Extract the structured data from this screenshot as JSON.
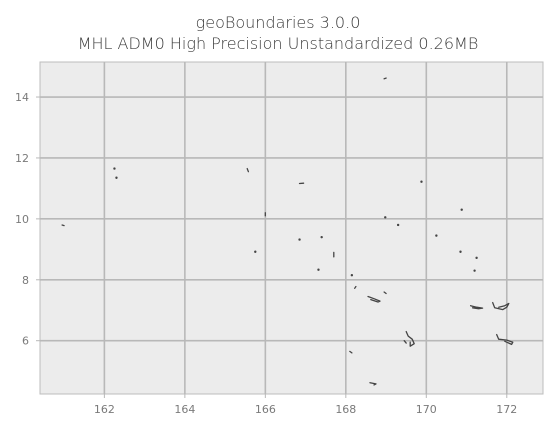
{
  "title": {
    "line1": "geoBoundaries 3.0.0",
    "line2": "MHL ADM0 High Precision Unstandardized 0.26MB"
  },
  "colors": {
    "background": "#ececec",
    "grid": "#b8b8b8",
    "land": "#444444"
  },
  "axes": {
    "x_range": [
      160.4,
      172.9
    ],
    "y_range": [
      4.25,
      15.15
    ],
    "x_ticks": [
      162,
      164,
      166,
      168,
      170,
      172
    ],
    "y_ticks": [
      6,
      8,
      10,
      12,
      14
    ],
    "grid": true
  },
  "islands": [
    {
      "name": "",
      "points": [
        [
          169.0,
          14.62
        ],
        [
          168.95,
          14.6
        ]
      ]
    },
    {
      "name": "",
      "points": [
        [
          162.25,
          11.65
        ]
      ]
    },
    {
      "name": "",
      "points": [
        [
          162.3,
          11.35
        ]
      ]
    },
    {
      "name": "",
      "points": [
        [
          165.55,
          11.65
        ],
        [
          165.58,
          11.55
        ]
      ]
    },
    {
      "name": "",
      "points": [
        [
          166.85,
          11.16
        ],
        [
          166.95,
          11.17
        ]
      ]
    },
    {
      "name": "",
      "points": [
        [
          169.88,
          11.22
        ]
      ]
    },
    {
      "name": "",
      "points": [
        [
          170.88,
          10.3
        ]
      ]
    },
    {
      "name": "",
      "points": [
        [
          160.95,
          9.8
        ],
        [
          161.0,
          9.78
        ]
      ]
    },
    {
      "name": "",
      "points": [
        [
          166.0,
          10.2
        ],
        [
          166.0,
          10.1
        ]
      ]
    },
    {
      "name": "",
      "points": [
        [
          168.98,
          10.05
        ]
      ]
    },
    {
      "name": "",
      "points": [
        [
          169.3,
          9.8
        ]
      ]
    },
    {
      "name": "",
      "points": [
        [
          170.25,
          9.45
        ]
      ]
    },
    {
      "name": "",
      "points": [
        [
          166.85,
          9.32
        ]
      ]
    },
    {
      "name": "",
      "points": [
        [
          167.4,
          9.4
        ]
      ]
    },
    {
      "name": "",
      "points": [
        [
          165.75,
          8.92
        ]
      ]
    },
    {
      "name": "",
      "points": [
        [
          167.7,
          8.9
        ],
        [
          167.7,
          8.75
        ]
      ]
    },
    {
      "name": "",
      "points": [
        [
          170.85,
          8.92
        ]
      ]
    },
    {
      "name": "",
      "points": [
        [
          171.25,
          8.72
        ]
      ]
    },
    {
      "name": "",
      "points": [
        [
          167.32,
          8.33
        ]
      ]
    },
    {
      "name": "",
      "points": [
        [
          171.2,
          8.3
        ]
      ]
    },
    {
      "name": "",
      "points": [
        [
          168.15,
          8.15
        ]
      ]
    },
    {
      "name": "",
      "points": [
        [
          168.25,
          7.78
        ],
        [
          168.22,
          7.72
        ]
      ]
    },
    {
      "name": "",
      "points": [
        [
          168.55,
          7.45
        ],
        [
          168.7,
          7.38
        ],
        [
          168.85,
          7.3
        ],
        [
          168.8,
          7.27
        ],
        [
          168.62,
          7.35
        ]
      ]
    },
    {
      "name": "",
      "points": [
        [
          168.95,
          7.6
        ],
        [
          169.0,
          7.55
        ]
      ]
    },
    {
      "name": "",
      "points": [
        [
          171.1,
          7.15
        ],
        [
          171.25,
          7.1
        ],
        [
          171.4,
          7.07
        ],
        [
          171.3,
          7.05
        ],
        [
          171.15,
          7.08
        ]
      ]
    },
    {
      "name": "",
      "points": [
        [
          171.65,
          7.25
        ],
        [
          171.7,
          7.08
        ],
        [
          171.9,
          7.02
        ],
        [
          172.0,
          7.1
        ],
        [
          172.05,
          7.22
        ],
        [
          171.95,
          7.15
        ],
        [
          171.8,
          7.1
        ]
      ]
    },
    {
      "name": "",
      "points": [
        [
          169.5,
          6.3
        ],
        [
          169.55,
          6.15
        ],
        [
          169.65,
          6.05
        ],
        [
          169.7,
          5.9
        ],
        [
          169.6,
          5.82
        ],
        [
          169.6,
          5.95
        ]
      ]
    },
    {
      "name": "",
      "points": [
        [
          169.45,
          6.0
        ],
        [
          169.5,
          5.92
        ]
      ]
    },
    {
      "name": "",
      "points": [
        [
          171.75,
          6.2
        ],
        [
          171.8,
          6.05
        ],
        [
          172.0,
          6.02
        ],
        [
          172.15,
          5.95
        ],
        [
          172.12,
          5.88
        ],
        [
          171.95,
          5.98
        ]
      ]
    },
    {
      "name": "",
      "points": [
        [
          168.1,
          5.65
        ],
        [
          168.15,
          5.6
        ]
      ]
    },
    {
      "name": "",
      "points": [
        [
          168.6,
          4.62
        ],
        [
          168.75,
          4.58
        ],
        [
          168.7,
          4.55
        ]
      ]
    }
  ]
}
